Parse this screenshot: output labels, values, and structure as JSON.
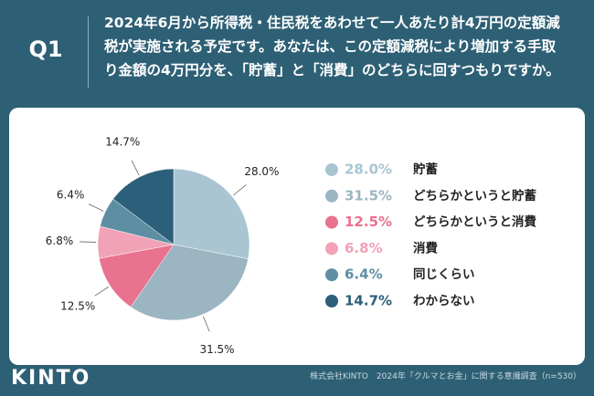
{
  "question_label": "Q1",
  "brand": "KINTO",
  "source": "株式会社KINTO　2024年「クルマとお金」に関する意識調査（n=530）",
  "chart_data": {
    "type": "pie",
    "title": "2024年6月から所得税・住民税をあわせて一人あたり計4万円の定額減税が実施される予定です。あなたは、この定額減税により増加する手取り金額の4万円分を、「貯蓄」と「消費」のどちらに回すつもりですか。",
    "categories": [
      "貯蓄",
      "どちらかというと貯蓄",
      "どちらかというと消費",
      "消費",
      "同じくらい",
      "わからない"
    ],
    "values": [
      28.0,
      31.5,
      12.5,
      6.8,
      6.4,
      14.7
    ],
    "value_labels": [
      "28.0%",
      "31.5%",
      "12.5%",
      "6.8%",
      "6.4%",
      "14.7%"
    ],
    "colors": [
      "#a9c5d2",
      "#9cb5c2",
      "#e8728f",
      "#f1a2b6",
      "#5d8ea4",
      "#2c5f79"
    ]
  }
}
